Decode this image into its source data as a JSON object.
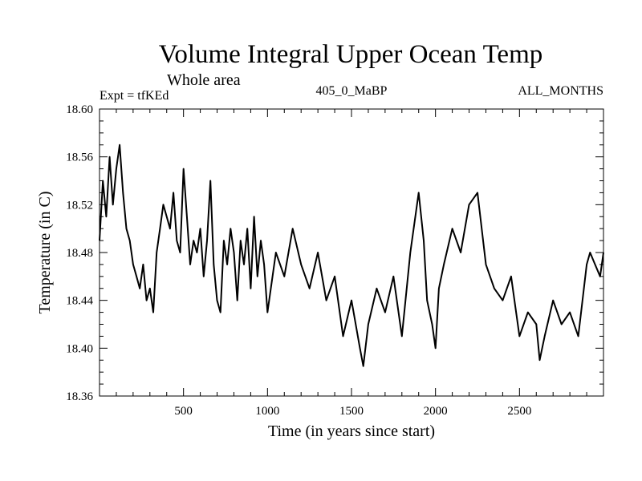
{
  "chart_data": {
    "type": "line",
    "title": "Volume Integral Upper Ocean Temp",
    "subtitle": "Whole area",
    "annotations": {
      "experiment": "Expt = tfKEd",
      "period": "405_0_MaBP",
      "months": "ALL_MONTHS"
    },
    "xlabel": "Time (in years since start)",
    "ylabel": "Temperature (in C)",
    "xlim": [
      0,
      3000
    ],
    "ylim": [
      18.36,
      18.6
    ],
    "x_ticks": [
      500,
      1000,
      1500,
      2000,
      2500
    ],
    "y_ticks": [
      "18.36",
      "18.40",
      "18.44",
      "18.48",
      "18.52",
      "18.56",
      "18.60"
    ],
    "grid": false,
    "series": [
      {
        "color": "#000000",
        "x": [
          0,
          20,
          40,
          60,
          80,
          100,
          120,
          140,
          160,
          180,
          200,
          220,
          240,
          260,
          280,
          300,
          320,
          340,
          360,
          380,
          400,
          420,
          440,
          460,
          480,
          500,
          520,
          540,
          560,
          580,
          600,
          620,
          640,
          660,
          680,
          700,
          720,
          740,
          760,
          780,
          800,
          820,
          840,
          860,
          880,
          900,
          920,
          940,
          960,
          980,
          1000,
          1050,
          1100,
          1150,
          1200,
          1250,
          1300,
          1350,
          1400,
          1450,
          1500,
          1550,
          1570,
          1600,
          1650,
          1700,
          1750,
          1800,
          1850,
          1900,
          1930,
          1950,
          1980,
          2000,
          2020,
          2050,
          2100,
          2150,
          2200,
          2250,
          2300,
          2350,
          2400,
          2450,
          2500,
          2550,
          2600,
          2620,
          2650,
          2700,
          2750,
          2800,
          2850,
          2900,
          2920,
          2950,
          2980,
          3000
        ],
        "values": [
          18.49,
          18.54,
          18.51,
          18.56,
          18.52,
          18.55,
          18.57,
          18.53,
          18.5,
          18.49,
          18.47,
          18.46,
          18.45,
          18.47,
          18.44,
          18.45,
          18.43,
          18.48,
          18.5,
          18.52,
          18.51,
          18.5,
          18.53,
          18.49,
          18.48,
          18.55,
          18.51,
          18.47,
          18.49,
          18.48,
          18.5,
          18.46,
          18.49,
          18.54,
          18.47,
          18.44,
          18.43,
          18.49,
          18.47,
          18.5,
          18.48,
          18.44,
          18.49,
          18.47,
          18.5,
          18.45,
          18.51,
          18.46,
          18.49,
          18.47,
          18.43,
          18.48,
          18.46,
          18.5,
          18.47,
          18.45,
          18.48,
          18.44,
          18.46,
          18.41,
          18.44,
          18.4,
          18.385,
          18.42,
          18.45,
          18.43,
          18.46,
          18.41,
          18.48,
          18.53,
          18.49,
          18.44,
          18.42,
          18.4,
          18.45,
          18.47,
          18.5,
          18.48,
          18.52,
          18.53,
          18.47,
          18.45,
          18.44,
          18.46,
          18.41,
          18.43,
          18.42,
          18.39,
          18.41,
          18.44,
          18.42,
          18.43,
          18.41,
          18.47,
          18.48,
          18.47,
          18.46,
          18.48
        ]
      }
    ]
  }
}
